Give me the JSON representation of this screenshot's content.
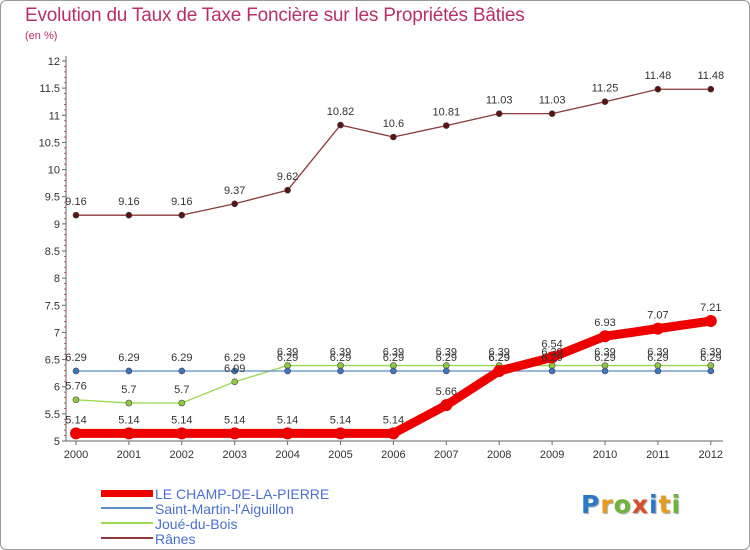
{
  "header": {
    "title": "Evolution du Taux de Taxe Foncière sur les Propriétés Bâties",
    "subtitle": "(en %)"
  },
  "logo": {
    "text": "Proxiti",
    "colors": [
      "#2a79c9",
      "#e89a1c",
      "#6fb33a",
      "#d94b2b",
      "#2a79c9",
      "#e89a1c",
      "#6fb33a"
    ]
  },
  "chart_data": {
    "type": "line",
    "title": "Evolution du Taux de Taxe Foncière sur les Propriétés Bâties",
    "ylabel": "(en %)",
    "xlabel": "",
    "x": [
      "2000",
      "2001",
      "2002",
      "2003",
      "2004",
      "2005",
      "2006",
      "2007",
      "2008",
      "2009",
      "2010",
      "2011",
      "2012"
    ],
    "ylim": [
      5,
      12
    ],
    "yticks": [
      "5",
      "5.5",
      "6",
      "6.5",
      "7",
      "7.5",
      "8",
      "8.5",
      "9",
      "9.5",
      "10",
      "10.5",
      "11",
      "11.5",
      "12"
    ],
    "grid": false,
    "legend_position": "bottom-left",
    "series": [
      {
        "name": "LE CHAMP-DE-LA-PIERRE",
        "color": "#ee0000",
        "marker": "#ee0000",
        "values": [
          5.14,
          5.14,
          5.14,
          5.14,
          5.14,
          5.14,
          5.14,
          5.66,
          6.29,
          6.54,
          6.93,
          7.07,
          7.21
        ],
        "labels": [
          "5.14",
          "5.14",
          "5.14",
          "5.14",
          "5.14",
          "5.14",
          "5.14",
          "5.66",
          "6.29",
          "6.54",
          "6.93",
          "7.07",
          "7.21"
        ]
      },
      {
        "name": "Saint-Martin-l'Aiguillon",
        "color": "#5a8cc6",
        "marker": "#3a78c0",
        "values": [
          6.29,
          6.29,
          6.29,
          6.29,
          6.29,
          6.29,
          6.29,
          6.29,
          6.29,
          6.29,
          6.29,
          6.29,
          6.29
        ],
        "labels": [
          "6.29",
          "6.29",
          "6.29",
          "6.29",
          "6.29",
          "6.29",
          "6.29",
          "6.29",
          "6.29",
          "6.29",
          "6.29",
          "6.29",
          "6.29"
        ]
      },
      {
        "name": "Joué-du-Bois",
        "color": "#9ad84f",
        "marker": "#8ccc3c",
        "values": [
          5.76,
          5.7,
          5.7,
          6.09,
          6.39,
          6.39,
          6.39,
          6.39,
          6.39,
          6.39,
          6.39,
          6.39,
          6.39
        ],
        "labels": [
          "5.76",
          "5.7",
          "5.7",
          "6.09",
          "6.39",
          "6.39",
          "6.39",
          "6.39",
          "6.39",
          "6.39",
          "6.39",
          "6.39",
          "6.39"
        ]
      },
      {
        "name": "Rânes",
        "color": "#8a3a3a",
        "marker": "#5a1414",
        "values": [
          9.16,
          9.16,
          9.16,
          9.37,
          9.62,
          10.82,
          10.6,
          10.81,
          11.03,
          11.03,
          11.25,
          11.48,
          11.48
        ],
        "labels": [
          "9.16",
          "9.16",
          "9.16",
          "9.37",
          "9.62",
          "10.82",
          "10.6",
          "10.81",
          "11.03",
          "11.03",
          "11.25",
          "11.48",
          "11.48"
        ]
      }
    ]
  }
}
